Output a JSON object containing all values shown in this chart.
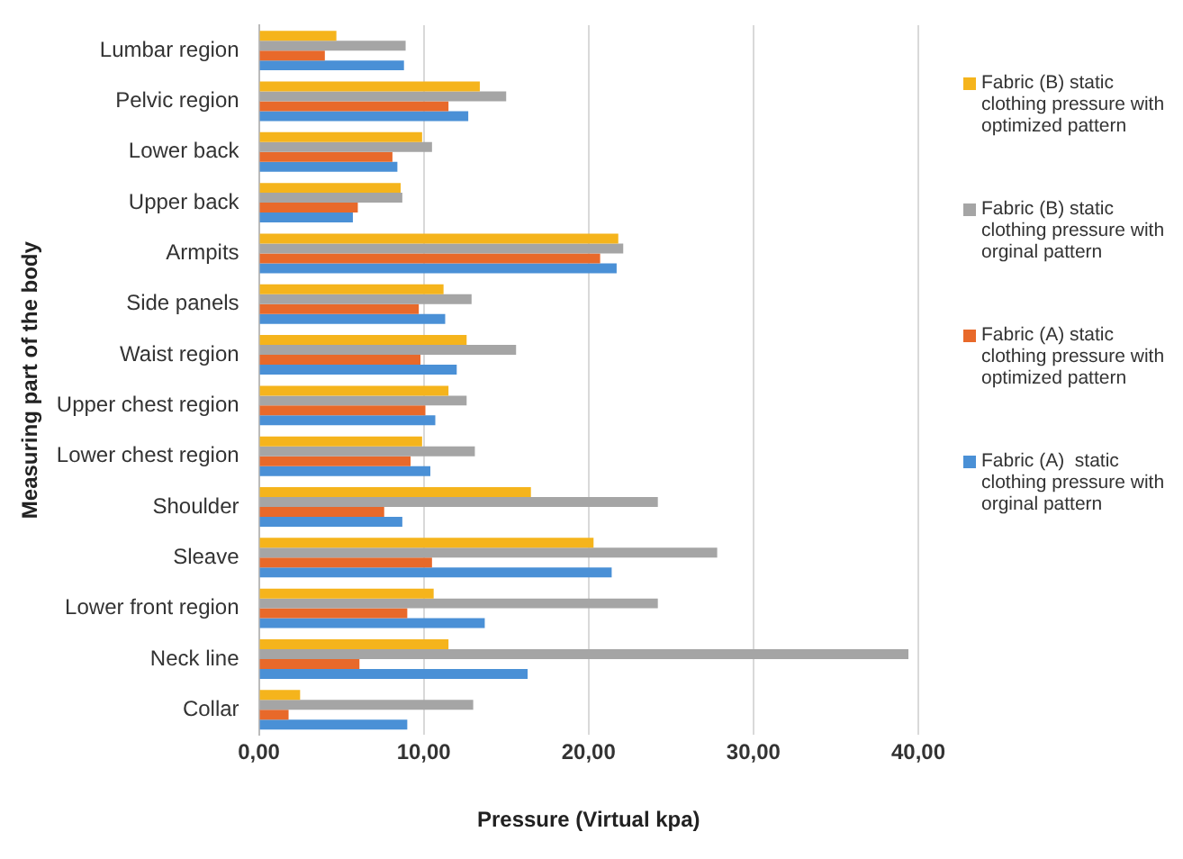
{
  "chart_data": {
    "type": "bar",
    "orientation": "horizontal",
    "xlabel": "Pressure (Virtual kpa)",
    "ylabel": "Measuring part of the body",
    "categories": [
      "Lumbar region",
      "Pelvic region",
      "Lower back",
      "Upper back",
      "Armpits",
      "Side panels",
      "Waist region",
      "Upper chest region",
      "Lower chest region",
      "Shoulder",
      "Sleave",
      "Lower front region",
      "Neck line",
      "Collar"
    ],
    "series": [
      {
        "name": "Fabric (B) static clothing pressure with optimized pattern",
        "color": "#f5b41c",
        "values": [
          4.7,
          13.4,
          9.9,
          8.6,
          21.8,
          11.2,
          12.6,
          11.5,
          9.9,
          16.5,
          20.3,
          10.6,
          11.5,
          2.5
        ]
      },
      {
        "name": "Fabric (B) static clothing pressure with orginal pattern",
        "color": "#a5a5a5",
        "values": [
          8.9,
          15.0,
          10.5,
          8.7,
          22.1,
          12.9,
          15.6,
          12.6,
          13.1,
          24.2,
          27.8,
          24.2,
          39.4,
          13.0
        ]
      },
      {
        "name": "Fabric (A) static clothing pressure with optimized pattern",
        "color": "#e8692a",
        "values": [
          4.0,
          11.5,
          8.1,
          6.0,
          20.7,
          9.7,
          9.8,
          10.1,
          9.2,
          7.6,
          10.5,
          9.0,
          6.1,
          1.8
        ]
      },
      {
        "name": "Fabric (A)  static clothing pressure with orginal pattern",
        "color": "#4a90d6",
        "values": [
          8.8,
          12.7,
          8.4,
          5.7,
          21.7,
          11.3,
          12.0,
          10.7,
          10.4,
          8.7,
          21.4,
          13.7,
          16.3,
          9.0
        ]
      }
    ],
    "xlim": [
      0,
      40
    ],
    "xticks": [
      {
        "value": 0,
        "label": "0,00"
      },
      {
        "value": 10,
        "label": "10,00"
      },
      {
        "value": 20,
        "label": "20,00"
      },
      {
        "value": 30,
        "label": "30,00"
      },
      {
        "value": 40,
        "label": "40,00"
      }
    ],
    "grid": "x",
    "legend": "right"
  }
}
